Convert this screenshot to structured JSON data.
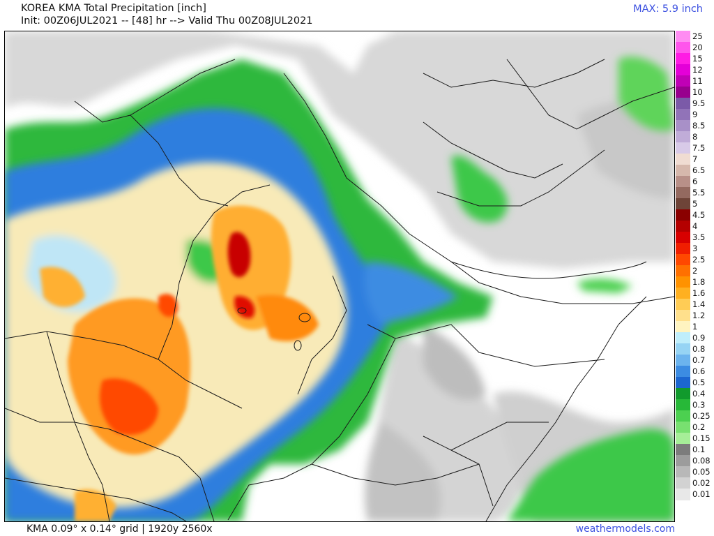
{
  "header": {
    "title": "KOREA KMA Total Precipitation [inch]",
    "subtitle": "Init: 00Z06JUL2021 -- [48] hr --> Valid Thu 00Z08JUL2021",
    "max_label": "MAX: 5.9 inch"
  },
  "footer": {
    "grid_info": "KMA 0.09° x 0.14° grid | 1920y 2560x",
    "site": "weathermodels.com"
  },
  "legend": {
    "levels": [
      {
        "label": "25",
        "color": "#ff8cf2"
      },
      {
        "label": "20",
        "color": "#ff55ec"
      },
      {
        "label": "15",
        "color": "#ff1ce4"
      },
      {
        "label": "12",
        "color": "#e400d8"
      },
      {
        "label": "11",
        "color": "#c000b6"
      },
      {
        "label": "10",
        "color": "#98008e"
      },
      {
        "label": "9.5",
        "color": "#7b5aa8"
      },
      {
        "label": "9",
        "color": "#9173b8"
      },
      {
        "label": "8.5",
        "color": "#a890c8"
      },
      {
        "label": "8",
        "color": "#c0acd8"
      },
      {
        "label": "7.5",
        "color": "#d8cae8"
      },
      {
        "label": "7",
        "color": "#f0dcd2"
      },
      {
        "label": "6.5",
        "color": "#d6b8ac"
      },
      {
        "label": "6",
        "color": "#b89088"
      },
      {
        "label": "5.5",
        "color": "#946a60"
      },
      {
        "label": "5",
        "color": "#6e4438"
      },
      {
        "label": "4.5",
        "color": "#8a0000"
      },
      {
        "label": "4",
        "color": "#b40000"
      },
      {
        "label": "3.5",
        "color": "#d80000"
      },
      {
        "label": "3",
        "color": "#f01e00"
      },
      {
        "label": "2.5",
        "color": "#ff4800"
      },
      {
        "label": "2",
        "color": "#ff7000"
      },
      {
        "label": "1.8",
        "color": "#ff9200"
      },
      {
        "label": "1.6",
        "color": "#ffb020"
      },
      {
        "label": "1.4",
        "color": "#ffcc55"
      },
      {
        "label": "1.2",
        "color": "#ffe08c"
      },
      {
        "label": "1",
        "color": "#fff4c0"
      },
      {
        "label": "0.9",
        "color": "#bfeefb"
      },
      {
        "label": "0.8",
        "color": "#96d4f4"
      },
      {
        "label": "0.7",
        "color": "#6cb4ee"
      },
      {
        "label": "0.6",
        "color": "#3c8ce2"
      },
      {
        "label": "0.5",
        "color": "#1c66d0"
      },
      {
        "label": "0.4",
        "color": "#119a2c"
      },
      {
        "label": "0.3",
        "color": "#27b838"
      },
      {
        "label": "0.25",
        "color": "#4cd050"
      },
      {
        "label": "0.2",
        "color": "#78e070"
      },
      {
        "label": "0.15",
        "color": "#a6ee98"
      },
      {
        "label": "0.1",
        "color": "#7c7c7c"
      },
      {
        "label": "0.08",
        "color": "#9c9c9c"
      },
      {
        "label": "0.05",
        "color": "#b8b8b8"
      },
      {
        "label": "0.02",
        "color": "#d2d2d2"
      },
      {
        "label": "0.01",
        "color": "#e8e8e8"
      }
    ]
  },
  "colors": {
    "title_text": "#111111",
    "accent_blue": "#3a4fe0",
    "border": "#000000",
    "background": "#ffffff"
  }
}
